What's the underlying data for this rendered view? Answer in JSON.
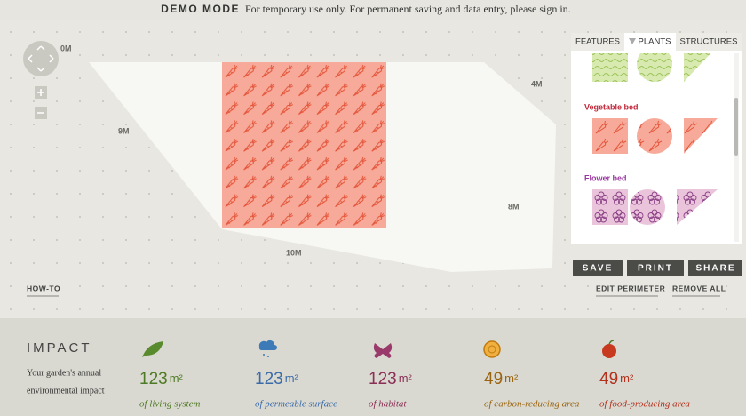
{
  "banner": {
    "label": "DEMO MODE",
    "message": "For temporary use only. For permanent saving and data entry, please sign in."
  },
  "canvas": {
    "dimensions": [
      "0M",
      "4M",
      "9M",
      "8M",
      "10M"
    ],
    "howto": "HOW-TO"
  },
  "panel": {
    "tabs": [
      "FEATURES",
      "PLANTS",
      "STRUCTURES"
    ],
    "sections": [
      "Vegetable bed",
      "Flower bed"
    ]
  },
  "actions": {
    "buttons": [
      "SAVE",
      "PRINT",
      "SHARE"
    ],
    "links": [
      "EDIT PERIMETER",
      "REMOVE ALL"
    ]
  },
  "impact": {
    "title": "IMPACT",
    "description": [
      "Your garden's annual",
      "environmental impact"
    ],
    "stats": [
      {
        "value": 123,
        "unit": "m²",
        "label": "of living system"
      },
      {
        "value": 123,
        "unit": "m²",
        "label": "of permeable surface"
      },
      {
        "value": 123,
        "unit": "m²",
        "label": "of habitat"
      },
      {
        "value": 49,
        "unit": "m²",
        "label": "of carbon-reducing area"
      },
      {
        "value": 49,
        "unit": "m²",
        "label": "of food-producing area"
      }
    ]
  }
}
